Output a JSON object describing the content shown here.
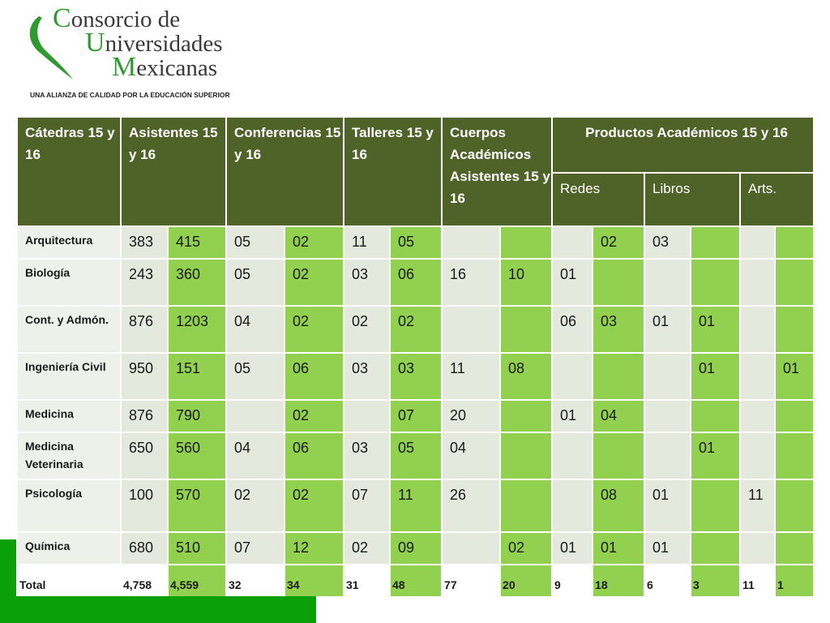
{
  "header": {
    "logo_lines": [
      "Consorcio de",
      "Universidades",
      "Mexicanas"
    ],
    "tagline": "UNA ALIANZA DE CALIDAD POR LA EDUCACIÓN SUPERIOR"
  },
  "table": {
    "headers": [
      "Cátedras 15 y 16",
      "Asistentes 15 y 16",
      "Conferencias 15 y 16",
      "Talleres 15 y 16",
      "Cuerpos Académicos Asistentes 15 y 16",
      "Productos Académicos 15 y 16"
    ],
    "product_subheaders": [
      "Redes",
      "Libros",
      "Arts."
    ],
    "rows": [
      {
        "label": "Arquitectura",
        "cells": [
          "383",
          "415",
          "05",
          "02",
          "11",
          "05",
          null,
          null,
          null,
          "02",
          "03",
          null,
          null,
          null
        ]
      },
      {
        "label": "Biología",
        "cells": [
          "243",
          "360",
          "05",
          "02",
          "03",
          "06",
          "16",
          "10",
          "01",
          null,
          null,
          null,
          null,
          null
        ]
      },
      {
        "label": "Cont. y Admón.",
        "cells": [
          "876",
          "1203",
          "04",
          "02",
          "02",
          "02",
          null,
          null,
          "06",
          "03",
          "01",
          "01",
          null,
          null
        ]
      },
      {
        "label": "Ingeniería Civil",
        "cells": [
          "950",
          "151",
          "05",
          "06",
          "03",
          "03",
          "11",
          "08",
          null,
          null,
          null,
          "01",
          null,
          "01"
        ]
      },
      {
        "label": "Medicina",
        "cells": [
          "876",
          "790",
          null,
          "02",
          null,
          "07",
          "20",
          null,
          "01",
          "04",
          null,
          null,
          null,
          null
        ]
      },
      {
        "label": "Medicina Veterinaria",
        "cells": [
          "650",
          "560",
          "04",
          "06",
          "03",
          "05",
          "04",
          null,
          null,
          null,
          null,
          "01",
          null,
          null
        ]
      },
      {
        "label": "Psicología",
        "cells": [
          "100",
          "570",
          "02",
          "02",
          "07",
          "11",
          "26",
          null,
          null,
          "08",
          "01",
          null,
          "11",
          null
        ]
      },
      {
        "label": "Química",
        "cells": [
          "680",
          "510",
          "07",
          "12",
          "02",
          "09",
          null,
          "02",
          "01",
          "01",
          "01",
          null,
          null,
          null
        ]
      }
    ],
    "total": {
      "label": "Total",
      "cells": [
        "4,758",
        "4,559",
        "32",
        "34",
        "31",
        "48",
        "77",
        "20",
        "9",
        "18",
        "6",
        "3",
        "11",
        "1"
      ]
    }
  }
}
